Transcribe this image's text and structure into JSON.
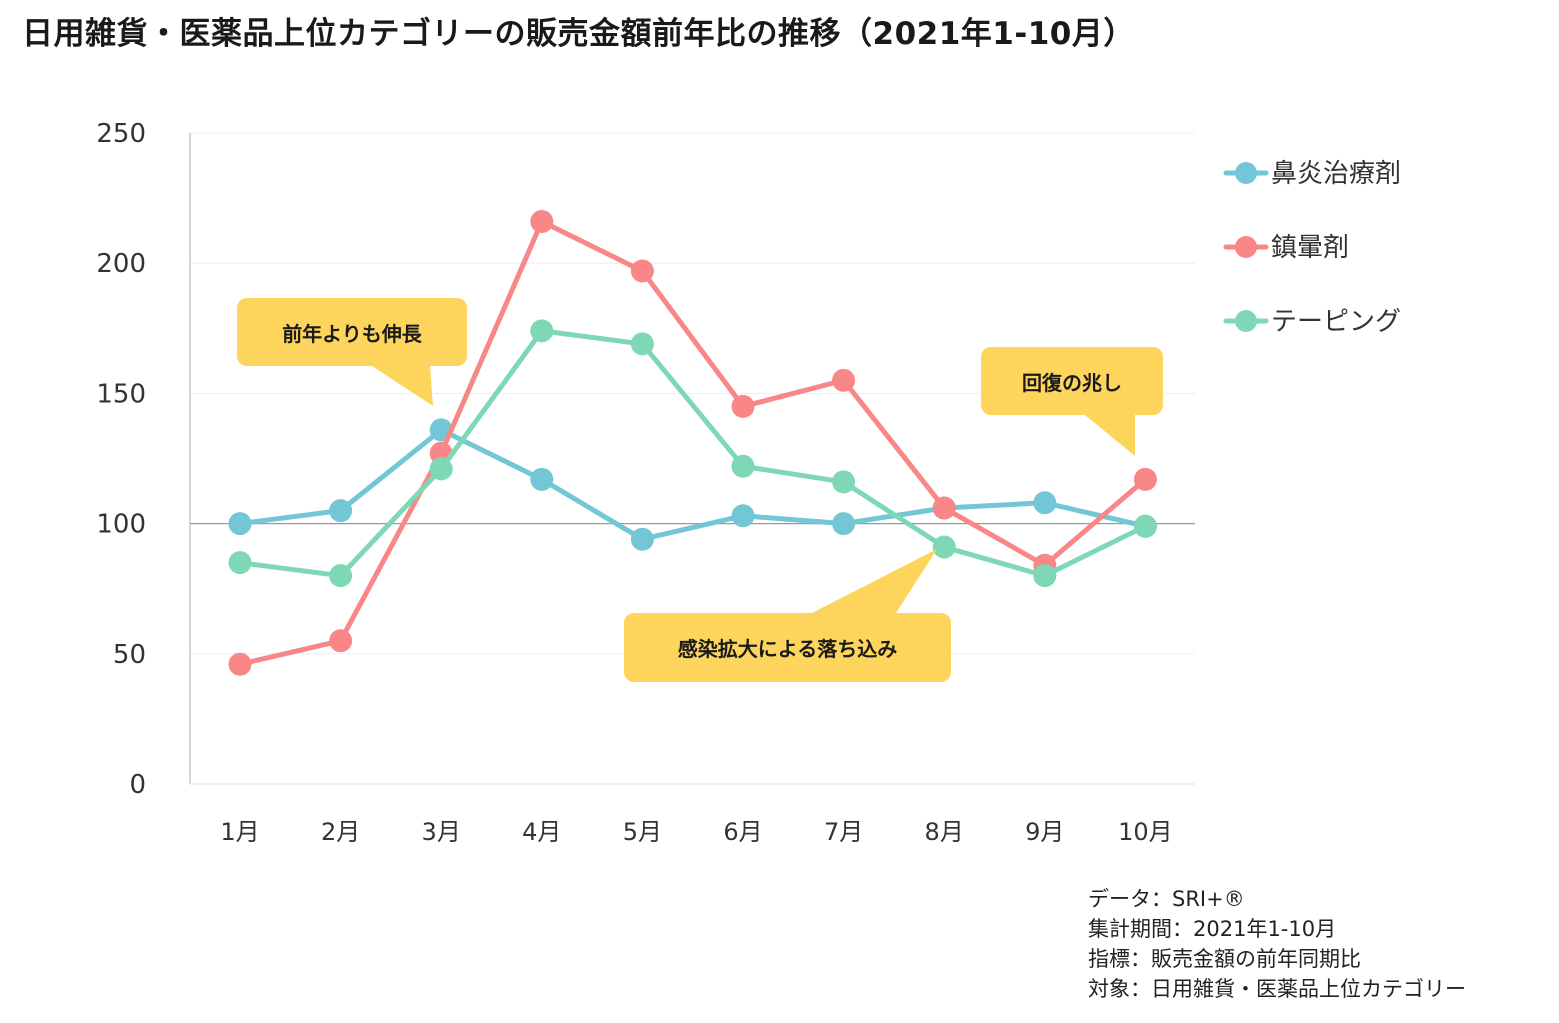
{
  "title": "日用雑貨・医薬品上位カテゴリーの販売金額前年比の推移（2021年1-10月）",
  "chart_data": {
    "type": "line",
    "categories": [
      "1月",
      "2月",
      "3月",
      "4月",
      "5月",
      "6月",
      "7月",
      "8月",
      "9月",
      "10月"
    ],
    "ylim": [
      0,
      250
    ],
    "yticks": [
      0,
      50,
      100,
      150,
      200,
      250
    ],
    "reference_line": 100,
    "grid": true,
    "legend_position": "right",
    "series": [
      {
        "name": "鼻炎治療剤",
        "color": "#72C6D6",
        "values": [
          100,
          105,
          136,
          117,
          94,
          103,
          100,
          106,
          108,
          99
        ]
      },
      {
        "name": "鎮暈剤",
        "color": "#F98787",
        "values": [
          46,
          55,
          127,
          216,
          197,
          145,
          155,
          106,
          84,
          117
        ]
      },
      {
        "name": "テーピング",
        "color": "#7ED8B6",
        "values": [
          85,
          80,
          121,
          174,
          169,
          122,
          116,
          91,
          80,
          99
        ]
      }
    ],
    "annotations": [
      {
        "text": "前年よりも伸長",
        "target_category": "3月"
      },
      {
        "text": "回復の兆し",
        "target_category": "10月"
      },
      {
        "text": "感染拡大による落ち込み",
        "target_category": "8月"
      }
    ]
  },
  "footnotes": [
    "データ：SRI+®",
    "集計期間：2021年1-10月",
    "指標：販売金額の前年同期比",
    "対象：日用雑貨・医薬品上位カテゴリー"
  ]
}
